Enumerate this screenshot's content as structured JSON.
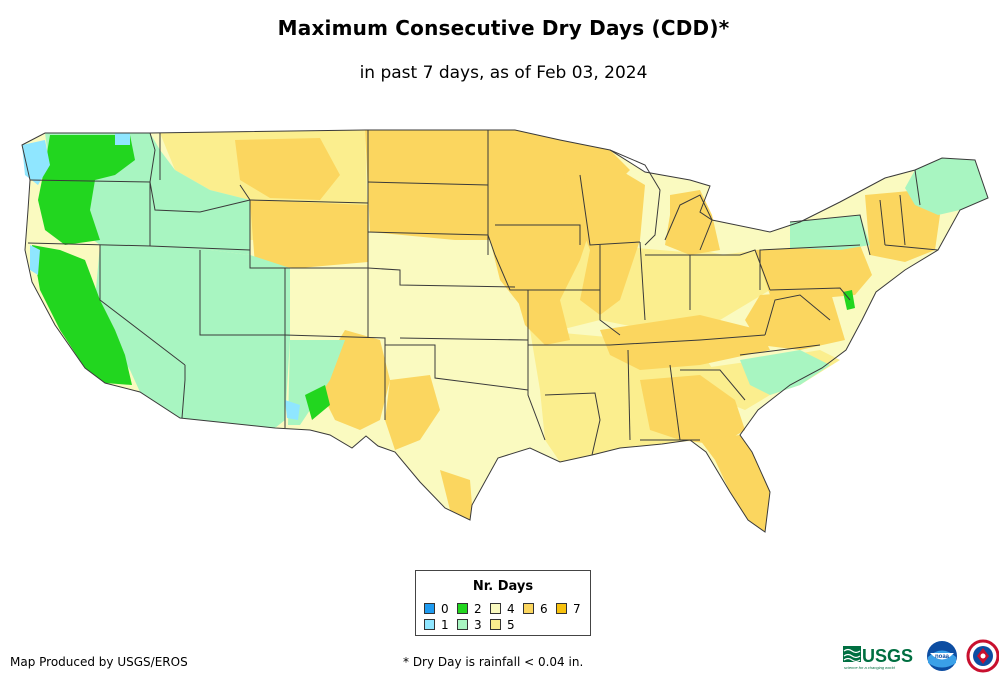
{
  "header": {
    "title": "Maximum Consecutive Dry Days (CDD)*",
    "subtitle": "in past 7 days, as of Feb 03, 2024"
  },
  "legend": {
    "title": "Nr. Days",
    "items": [
      {
        "label": "0",
        "color": "#1f9bf0"
      },
      {
        "label": "1",
        "color": "#8fe6ff"
      },
      {
        "label": "2",
        "color": "#22d61f"
      },
      {
        "label": "3",
        "color": "#a8f5c1"
      },
      {
        "label": "4",
        "color": "#fafac0"
      },
      {
        "label": "5",
        "color": "#fbee8e"
      },
      {
        "label": "6",
        "color": "#fbd65f"
      },
      {
        "label": "7",
        "color": "#f7c10e"
      }
    ]
  },
  "footer": {
    "credit": "Map Produced by USGS/EROS",
    "note": "* Dry Day is rainfall < 0.04 in."
  },
  "logos": {
    "usgs_text": "USGS",
    "usgs_tagline": "science for a changing world",
    "noaa_text": "noaa"
  }
}
